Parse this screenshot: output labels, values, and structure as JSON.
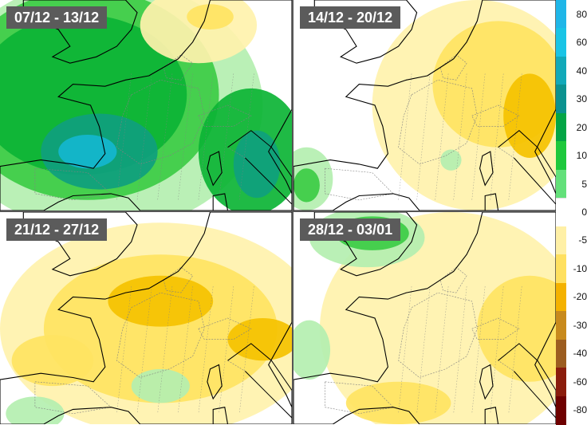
{
  "panels": [
    {
      "label": "07/12 - 13/12",
      "scheme": "wet"
    },
    {
      "label": "14/12 - 20/12",
      "scheme": "mixed"
    },
    {
      "label": "21/12 - 27/12",
      "scheme": "dry"
    },
    {
      "label": "28/12 - 03/01",
      "scheme": "drywest"
    }
  ],
  "legend": {
    "ticks": [
      "80",
      "60",
      "40",
      "30",
      "20",
      "10",
      "5",
      "0",
      "-5",
      "-10",
      "-20",
      "-30",
      "-40",
      "-60",
      "-80"
    ],
    "colors": [
      "#1fb6e8",
      "#19c4e6",
      "#12a9b9",
      "#0c9290",
      "#04a545",
      "#1ec83c",
      "#63e07a",
      "#ffffff",
      "#fff0a6",
      "#ffe060",
      "#f4b200",
      "#c88a1c",
      "#9c5d20",
      "#8a1c0c",
      "#6e0000"
    ]
  },
  "palette": {
    "wet_light": "#b4efb0",
    "wet_mid": "#3ccc45",
    "wet_strong": "#0cb435",
    "wet_teal": "#0fa07e",
    "wet_cyan": "#14b6cf",
    "dry_light": "#fff2ad",
    "dry_mid": "#ffe462",
    "dry_strong": "#f5c200",
    "border": "#000000",
    "subborder": "#808080"
  }
}
